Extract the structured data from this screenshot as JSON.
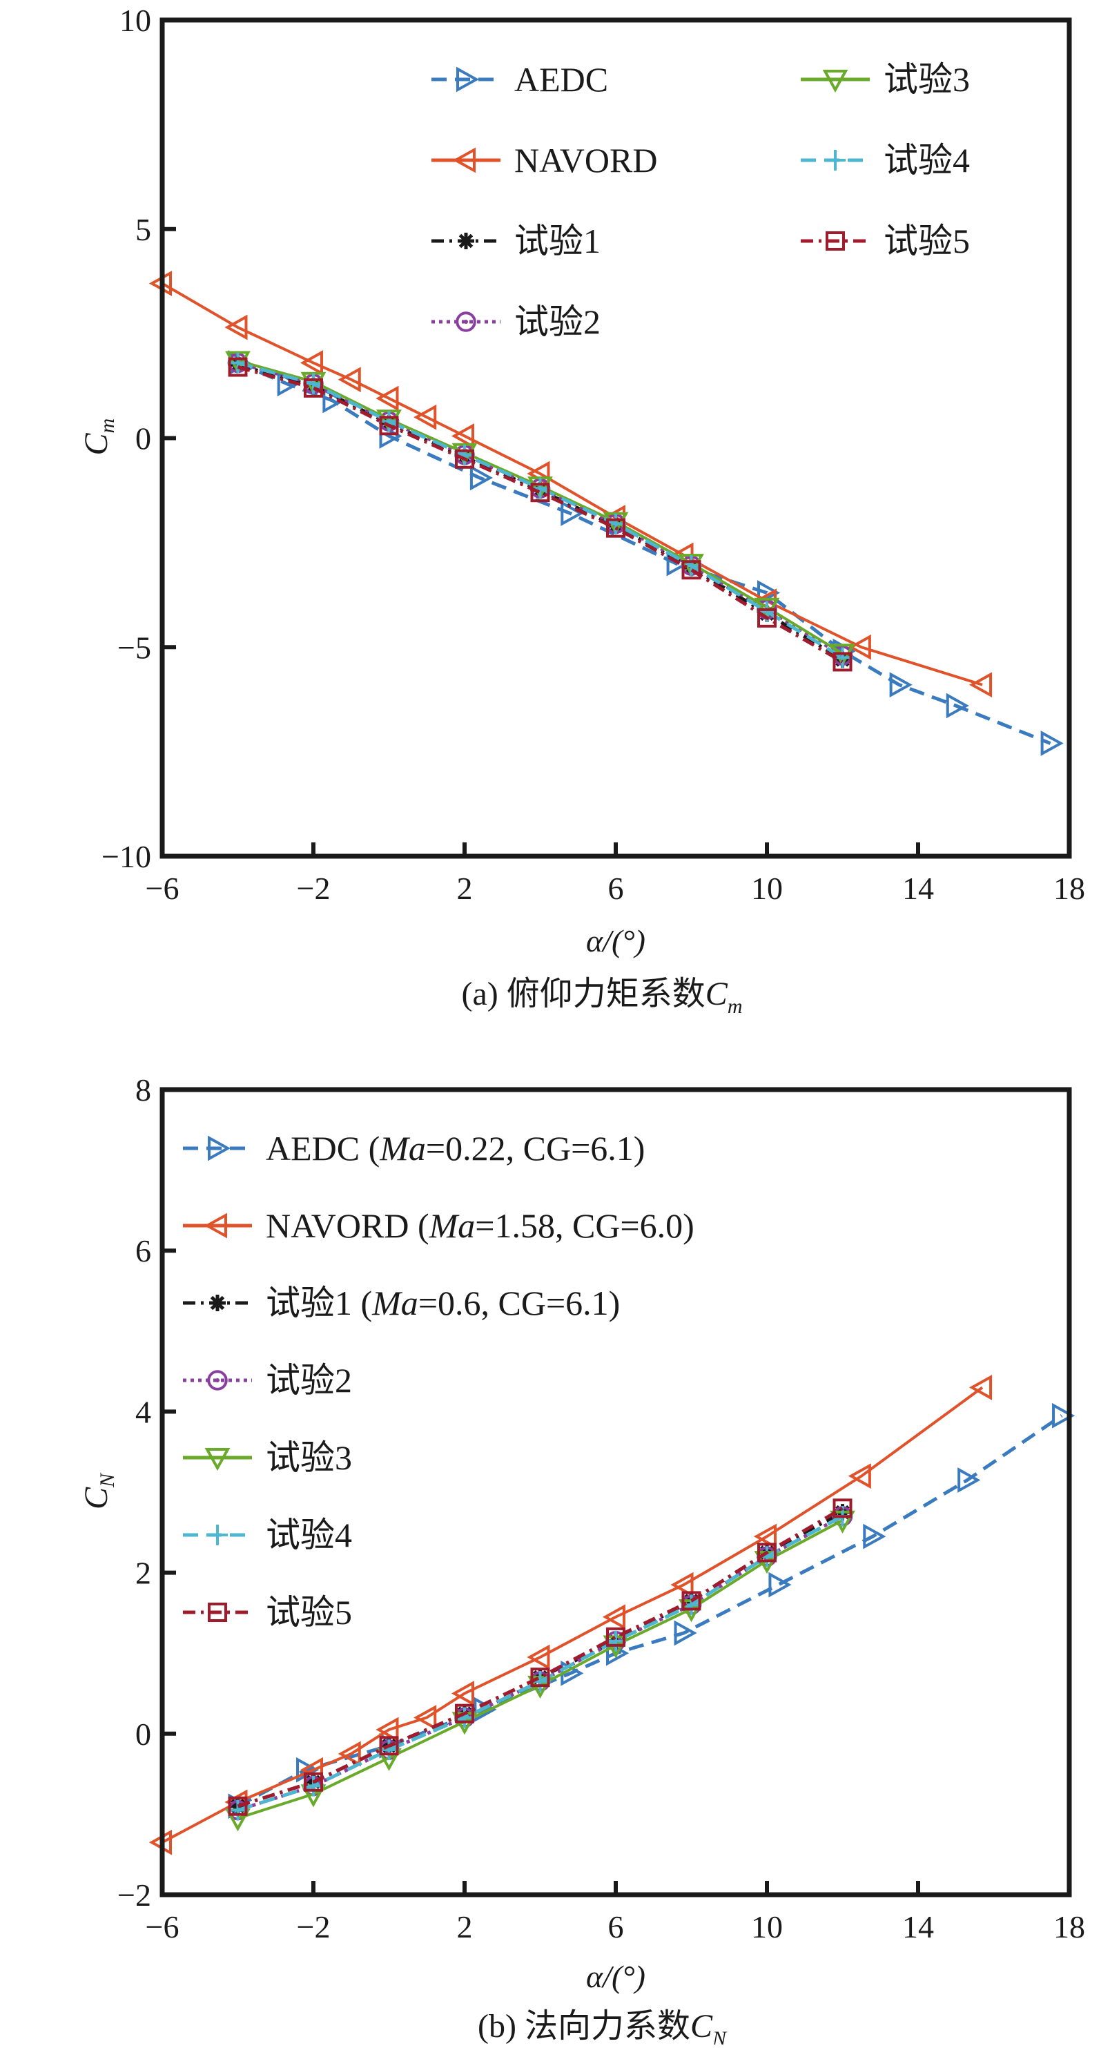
{
  "chart_data": [
    {
      "type": "line",
      "id": "a",
      "caption_prefix": "(a) 俯仰力矩系数",
      "caption_sym": "C",
      "caption_sub": "m",
      "ylabel_sym": "C",
      "ylabel_sub": "m",
      "xlabel": "α/(°)",
      "xlim": [
        -6,
        18
      ],
      "ylim": [
        -10,
        10
      ],
      "xticks": [
        -6,
        -2,
        2,
        6,
        10,
        14,
        18
      ],
      "xtick_labels": [
        "−6",
        "−2",
        "2",
        "6",
        "10",
        "14",
        "18"
      ],
      "yticks": [
        -10,
        -5,
        0,
        5,
        10
      ],
      "ytick_labels": [
        "−10",
        "−5",
        "0",
        "5",
        "10"
      ],
      "legend_placement": "top-right",
      "series": [
        {
          "name": "AEDC",
          "color": "#3a7bbf",
          "marker": "triangle-right",
          "dash": "dashed",
          "x": [
            -4,
            -2.7,
            -1.5,
            0,
            2.4,
            4.8,
            7.6,
            10,
            12,
            13.5,
            15,
            17.5
          ],
          "y": [
            1.8,
            1.3,
            0.9,
            0.05,
            -0.95,
            -1.8,
            -3.0,
            -3.7,
            -5.1,
            -5.9,
            -6.4,
            -7.3
          ]
        },
        {
          "name": "NAVORD",
          "color": "#e0522a",
          "marker": "triangle-left",
          "dash": "solid",
          "x": [
            -6,
            -4,
            -2,
            -1,
            0,
            1,
            2,
            4,
            6,
            7.8,
            10,
            12.5,
            15.7
          ],
          "y": [
            3.7,
            2.65,
            1.8,
            1.4,
            0.95,
            0.5,
            0.05,
            -0.85,
            -1.9,
            -2.8,
            -3.9,
            -5.0,
            -5.9
          ]
        },
        {
          "name": "试验1",
          "color": "#1a1a1a",
          "marker": "asterisk",
          "dash": "dashdot",
          "x": [
            -4,
            -2,
            0,
            2,
            4,
            6,
            8,
            10,
            12
          ],
          "y": [
            1.75,
            1.25,
            0.35,
            -0.45,
            -1.25,
            -2.1,
            -3.1,
            -4.2,
            -5.3
          ]
        },
        {
          "name": "试验2",
          "color": "#8a3fa0",
          "marker": "circle",
          "dash": "dotted",
          "x": [
            -4,
            -2,
            0,
            2,
            4,
            6,
            8,
            10,
            12
          ],
          "y": [
            1.8,
            1.3,
            0.4,
            -0.4,
            -1.2,
            -2.05,
            -3.05,
            -4.1,
            -5.2
          ]
        },
        {
          "name": "试验3",
          "color": "#6aaa2a",
          "marker": "triangle-down",
          "dash": "solid",
          "x": [
            -4,
            -2,
            0,
            2,
            4,
            6,
            8,
            10,
            12
          ],
          "y": [
            1.85,
            1.35,
            0.45,
            -0.35,
            -1.15,
            -2.0,
            -3.0,
            -4.05,
            -5.15
          ]
        },
        {
          "name": "试验4",
          "color": "#4fb6d0",
          "marker": "plus",
          "dash": "dashed",
          "x": [
            -4,
            -2,
            0,
            2,
            4,
            6,
            8,
            10,
            12
          ],
          "y": [
            1.8,
            1.3,
            0.4,
            -0.4,
            -1.2,
            -2.05,
            -3.05,
            -4.15,
            -5.25
          ]
        },
        {
          "name": "试验5",
          "color": "#a01c2c",
          "marker": "square",
          "dash": "dashdot",
          "x": [
            -4,
            -2,
            0,
            2,
            4,
            6,
            8,
            10,
            12
          ],
          "y": [
            1.7,
            1.2,
            0.3,
            -0.5,
            -1.3,
            -2.15,
            -3.15,
            -4.3,
            -5.35
          ]
        }
      ]
    },
    {
      "type": "line",
      "id": "b",
      "caption_prefix": "(b) 法向力系数",
      "caption_sym": "C",
      "caption_sub": "N",
      "ylabel_sym": "C",
      "ylabel_sub": "N",
      "xlabel": "α/(°)",
      "xlim": [
        -6,
        18
      ],
      "ylim": [
        -2,
        8
      ],
      "xticks": [
        -6,
        -2,
        2,
        6,
        10,
        14,
        18
      ],
      "xtick_labels": [
        "−6",
        "−2",
        "2",
        "6",
        "10",
        "14",
        "18"
      ],
      "yticks": [
        -2,
        0,
        2,
        4,
        6,
        8
      ],
      "ytick_labels": [
        "−2",
        "0",
        "2",
        "4",
        "6",
        "8"
      ],
      "legend_placement": "top-left",
      "series": [
        {
          "name": "AEDC",
          "legend_note_pre": " (",
          "legend_note_it": "Ma",
          "legend_note_post": "=0.22, CG=6.1)",
          "color": "#3a7bbf",
          "marker": "triangle-right",
          "dash": "dashed",
          "x": [
            -4,
            -2.2,
            0,
            2.5,
            4.8,
            6,
            7.8,
            10.3,
            12.8,
            15.3,
            17.8
          ],
          "y": [
            -0.9,
            -0.45,
            -0.15,
            0.3,
            0.75,
            1.0,
            1.25,
            1.85,
            2.45,
            3.15,
            3.95
          ]
        },
        {
          "name": "NAVORD",
          "legend_note_pre": " (",
          "legend_note_it": "Ma",
          "legend_note_post": "=1.58, CG=6.0)",
          "color": "#e0522a",
          "marker": "triangle-left",
          "dash": "solid",
          "x": [
            -6,
            -4,
            -2,
            -1,
            0,
            1,
            2,
            4,
            6,
            7.8,
            10,
            12.5,
            15.7
          ],
          "y": [
            -1.35,
            -0.85,
            -0.45,
            -0.25,
            0.05,
            0.2,
            0.5,
            0.95,
            1.45,
            1.85,
            2.45,
            3.2,
            4.3
          ]
        },
        {
          "name": "试验1",
          "legend_note_pre": " (",
          "legend_note_it": "Ma",
          "legend_note_post": "=0.6, CG=6.1)",
          "color": "#1a1a1a",
          "marker": "asterisk",
          "dash": "dashdot",
          "x": [
            -4,
            -2,
            0,
            2,
            4,
            6,
            8,
            10,
            12
          ],
          "y": [
            -0.9,
            -0.6,
            -0.15,
            0.25,
            0.7,
            1.15,
            1.65,
            2.25,
            2.75
          ]
        },
        {
          "name": "试验2",
          "color": "#8a3fa0",
          "marker": "circle",
          "dash": "dotted",
          "x": [
            -4,
            -2,
            0,
            2,
            4,
            6,
            8,
            10,
            12
          ],
          "y": [
            -0.95,
            -0.65,
            -0.2,
            0.2,
            0.65,
            1.15,
            1.6,
            2.2,
            2.7
          ]
        },
        {
          "name": "试验3",
          "color": "#6aaa2a",
          "marker": "triangle-down",
          "dash": "solid",
          "x": [
            -4,
            -2,
            0,
            2,
            4,
            6,
            8,
            10,
            12
          ],
          "y": [
            -1.05,
            -0.75,
            -0.3,
            0.15,
            0.6,
            1.1,
            1.55,
            2.15,
            2.65
          ]
        },
        {
          "name": "试验4",
          "color": "#4fb6d0",
          "marker": "plus",
          "dash": "dashed",
          "x": [
            -4,
            -2,
            0,
            2,
            4,
            6,
            8,
            10,
            12
          ],
          "y": [
            -0.95,
            -0.65,
            -0.2,
            0.2,
            0.65,
            1.15,
            1.6,
            2.2,
            2.7
          ]
        },
        {
          "name": "试验5",
          "color": "#a01c2c",
          "marker": "square",
          "dash": "dashdot",
          "x": [
            -4,
            -2,
            0,
            2,
            4,
            6,
            8,
            10,
            12
          ],
          "y": [
            -0.9,
            -0.6,
            -0.15,
            0.25,
            0.7,
            1.2,
            1.65,
            2.25,
            2.8
          ]
        }
      ]
    }
  ]
}
